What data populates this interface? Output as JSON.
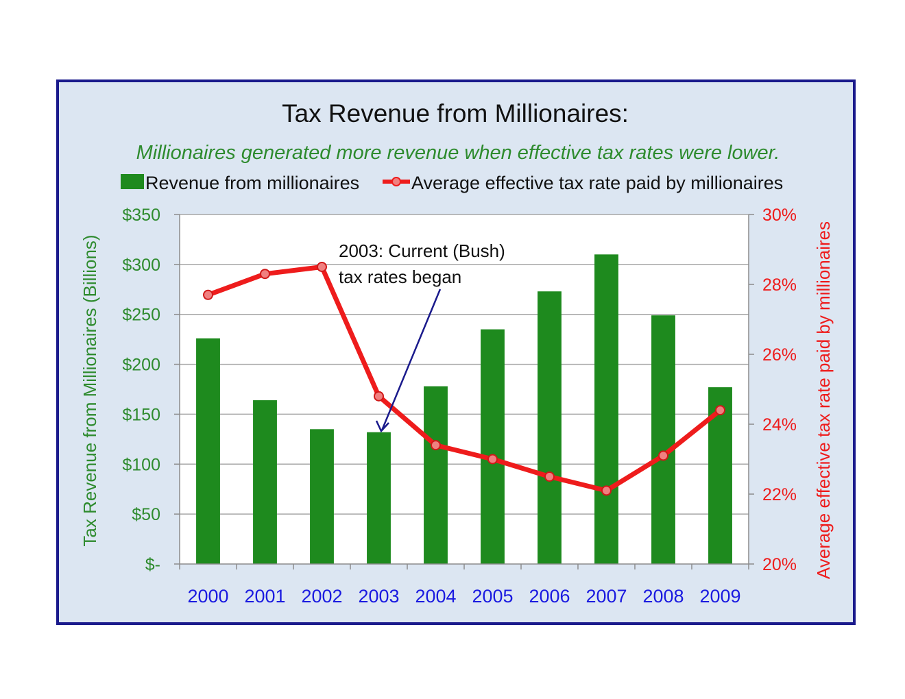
{
  "chart_data": {
    "type": "bar+line",
    "title": "Tax Revenue from Millionaires:",
    "subtitle": "Millionaires generated more revenue when effective tax rates were lower.",
    "categories": [
      "2000",
      "2001",
      "2002",
      "2003",
      "2004",
      "2005",
      "2006",
      "2007",
      "2008",
      "2009"
    ],
    "series": [
      {
        "name": "Revenue from millionaires",
        "type": "bar",
        "axis": "left",
        "color": "#1e8a1e",
        "values": [
          226,
          164,
          135,
          132,
          178,
          235,
          273,
          310,
          249,
          177
        ]
      },
      {
        "name": "Average effective tax rate paid by millionaires",
        "type": "line",
        "axis": "right",
        "color": "#ee1c1c",
        "marker_color": "#f08080",
        "values": [
          27.7,
          28.3,
          28.5,
          24.8,
          23.4,
          23.0,
          22.5,
          22.1,
          23.1,
          24.4
        ]
      }
    ],
    "y_left": {
      "label": "Tax Revenue from Millionaires (Billions)",
      "ylim": [
        0,
        350
      ],
      "ticks": [
        0,
        50,
        100,
        150,
        200,
        250,
        300,
        350
      ],
      "tick_labels": [
        "$-",
        "$50",
        "$100",
        "$150",
        "$200",
        "$250",
        "$300",
        "$350"
      ],
      "color": "#2e8b2e"
    },
    "y_right": {
      "label": "Average effective tax rate paid by millionaires",
      "ylim": [
        20,
        30
      ],
      "ticks": [
        20,
        22,
        24,
        26,
        28,
        30
      ],
      "tick_labels": [
        "20%",
        "22%",
        "24%",
        "26%",
        "28%",
        "30%"
      ],
      "color": "#ee1c1c"
    },
    "x_tick_color": "#1a1ae0",
    "grid": true,
    "legend_position": "top",
    "annotation": {
      "text_line1": "2003: Current (Bush)",
      "text_line2": "tax rates began",
      "target_category": "2003",
      "target_value": 132,
      "arrow_color": "#1a1a8c"
    }
  }
}
